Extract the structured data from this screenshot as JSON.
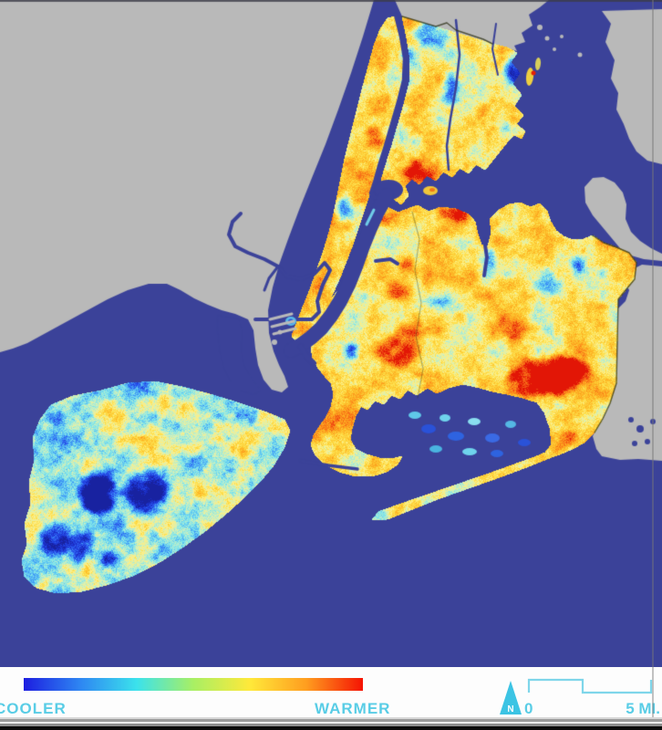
{
  "legend": {
    "cooler_label": "COOLER",
    "warmer_label": "WARMER",
    "north_label": "N",
    "scale_start_label": "0",
    "scale_end_label": "5 MI.",
    "text_color": "#59cde6",
    "arrow_color": "#3cc4e4",
    "scale_line_color": "#7fd6ea",
    "background": "#fdfdfd",
    "gradient_stops": [
      "#1d1ee0",
      "#2e86f2",
      "#3be2ec",
      "#a8ef64",
      "#ffe93a",
      "#ff9d1f",
      "#f51303"
    ]
  },
  "map": {
    "water_color": "#3b4299",
    "non_city_land_color": "#b9b9b9",
    "city_border_color": "#34381f",
    "heat_scale": [
      "#1822a0",
      "#1c34d7",
      "#2d5ff0",
      "#46aaf5",
      "#78e1ee",
      "#b9eecd",
      "#faf296",
      "#fede46",
      "#fdbe28",
      "#fc941c",
      "#f45c16",
      "#e21606"
    ]
  },
  "window": {
    "top_border_color": "rgba(60,60,72,0.8)",
    "right_edge_color": "rgba(120,120,120,0.45)",
    "bottom_bar_colors": [
      "#d8d8d8",
      "#9b9b9b",
      "#ececec",
      "#8e8e8e",
      "#0b0b0b"
    ]
  }
}
